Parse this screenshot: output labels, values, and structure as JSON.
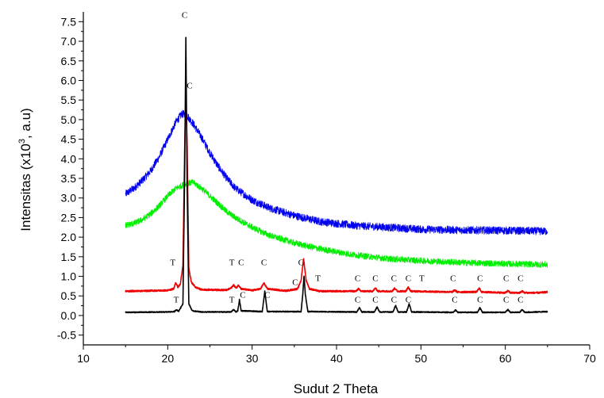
{
  "chart_data": {
    "type": "line",
    "title": "",
    "xlabel": "Sudut 2 Theta",
    "ylabel": "Intensitas (x10³, a.u)",
    "ylabel_parts": {
      "pre": "Intensitas (x10",
      "sup": "3",
      "post": ", a.u)"
    },
    "xlim": [
      10,
      70
    ],
    "ylim": [
      -0.75,
      7.75
    ],
    "xticks": [
      10,
      20,
      30,
      40,
      50,
      60,
      70
    ],
    "yticks": [
      -0.5,
      0.0,
      0.5,
      1.0,
      1.5,
      2.0,
      2.5,
      3.0,
      3.5,
      4.0,
      4.5,
      5.0,
      5.5,
      6.0,
      6.5,
      7.0,
      7.5
    ],
    "ytick_labels": [
      "-0.5",
      "0.0",
      "0.5",
      "1.0",
      "1.5",
      "2.0",
      "2.5",
      "3.0",
      "3.5",
      "4.0",
      "4.5",
      "5.0",
      "5.5",
      "6.0",
      "6.5",
      "7.0",
      "7.5"
    ],
    "grid": false,
    "legend": "none",
    "series": [
      {
        "color": "#0000ee",
        "noise": 0.1,
        "points": [
          [
            15,
            3.1
          ],
          [
            16,
            3.25
          ],
          [
            17,
            3.45
          ],
          [
            18,
            3.7
          ],
          [
            19,
            4.05
          ],
          [
            20,
            4.5
          ],
          [
            21,
            4.95
          ],
          [
            21.7,
            5.15
          ],
          [
            22.3,
            5.1
          ],
          [
            23,
            4.9
          ],
          [
            24,
            4.55
          ],
          [
            25,
            4.15
          ],
          [
            26,
            3.8
          ],
          [
            27,
            3.5
          ],
          [
            28,
            3.25
          ],
          [
            30,
            2.95
          ],
          [
            32,
            2.75
          ],
          [
            35,
            2.55
          ],
          [
            38,
            2.4
          ],
          [
            42,
            2.3
          ],
          [
            46,
            2.25
          ],
          [
            50,
            2.2
          ],
          [
            55,
            2.18
          ],
          [
            60,
            2.17
          ],
          [
            65,
            2.15
          ]
        ]
      },
      {
        "color": "#00ee00",
        "noise": 0.08,
        "points": [
          [
            15,
            2.3
          ],
          [
            16,
            2.35
          ],
          [
            17,
            2.45
          ],
          [
            18,
            2.6
          ],
          [
            19,
            2.8
          ],
          [
            20,
            3.05
          ],
          [
            21,
            3.25
          ],
          [
            22,
            3.35
          ],
          [
            23,
            3.4
          ],
          [
            24,
            3.25
          ],
          [
            25,
            3.05
          ],
          [
            26,
            2.85
          ],
          [
            27,
            2.65
          ],
          [
            28,
            2.5
          ],
          [
            30,
            2.25
          ],
          [
            32,
            2.05
          ],
          [
            35,
            1.85
          ],
          [
            38,
            1.7
          ],
          [
            42,
            1.55
          ],
          [
            46,
            1.45
          ],
          [
            50,
            1.4
          ],
          [
            55,
            1.35
          ],
          [
            60,
            1.32
          ],
          [
            65,
            1.3
          ]
        ]
      },
      {
        "color": "#ee0000",
        "noise": 0.02,
        "points": [
          [
            15,
            0.62
          ],
          [
            20,
            0.64
          ],
          [
            20.7,
            0.68
          ],
          [
            20.95,
            0.85
          ],
          [
            21.2,
            0.72
          ],
          [
            21.5,
            0.8
          ],
          [
            21.8,
            1.3
          ],
          [
            22.0,
            4.2
          ],
          [
            22.15,
            5.7
          ],
          [
            22.3,
            4.3
          ],
          [
            22.5,
            1.2
          ],
          [
            22.8,
            0.85
          ],
          [
            23.3,
            0.72
          ],
          [
            24,
            0.66
          ],
          [
            27,
            0.65
          ],
          [
            27.5,
            0.7
          ],
          [
            27.8,
            0.78
          ],
          [
            28.1,
            0.7
          ],
          [
            28.4,
            0.78
          ],
          [
            28.7,
            0.68
          ],
          [
            30,
            0.64
          ],
          [
            31,
            0.68
          ],
          [
            31.4,
            0.83
          ],
          [
            31.8,
            0.68
          ],
          [
            34,
            0.63
          ],
          [
            35.4,
            0.68
          ],
          [
            35.8,
            0.9
          ],
          [
            36.1,
            1.45
          ],
          [
            36.4,
            0.9
          ],
          [
            36.8,
            0.68
          ],
          [
            38,
            0.62
          ],
          [
            42.3,
            0.62
          ],
          [
            42.6,
            0.68
          ],
          [
            42.9,
            0.62
          ],
          [
            44.3,
            0.62
          ],
          [
            44.6,
            0.7
          ],
          [
            44.9,
            0.62
          ],
          [
            46.6,
            0.62
          ],
          [
            46.9,
            0.7
          ],
          [
            47.2,
            0.62
          ],
          [
            48.2,
            0.62
          ],
          [
            48.5,
            0.72
          ],
          [
            48.8,
            0.62
          ],
          [
            53.7,
            0.6
          ],
          [
            54.0,
            0.65
          ],
          [
            54.3,
            0.6
          ],
          [
            56.6,
            0.6
          ],
          [
            56.9,
            0.7
          ],
          [
            57.2,
            0.6
          ],
          [
            60,
            0.58
          ],
          [
            60.3,
            0.63
          ],
          [
            60.6,
            0.58
          ],
          [
            61.7,
            0.58
          ],
          [
            62.0,
            0.62
          ],
          [
            62.3,
            0.58
          ],
          [
            64,
            0.58
          ],
          [
            65,
            0.6
          ]
        ]
      },
      {
        "color": "#000000",
        "noise": 0.012,
        "points": [
          [
            15,
            0.08
          ],
          [
            20,
            0.09
          ],
          [
            20.8,
            0.1
          ],
          [
            21.0,
            0.15
          ],
          [
            21.3,
            0.11
          ],
          [
            21.8,
            0.3
          ],
          [
            22.0,
            3.5
          ],
          [
            22.15,
            7.1
          ],
          [
            22.3,
            3.3
          ],
          [
            22.5,
            0.3
          ],
          [
            22.9,
            0.12
          ],
          [
            24,
            0.09
          ],
          [
            27.5,
            0.09
          ],
          [
            27.8,
            0.15
          ],
          [
            28.1,
            0.09
          ],
          [
            28.3,
            0.12
          ],
          [
            28.5,
            0.4
          ],
          [
            28.7,
            0.12
          ],
          [
            31.2,
            0.1
          ],
          [
            31.5,
            0.62
          ],
          [
            31.8,
            0.1
          ],
          [
            35.8,
            0.1
          ],
          [
            36.0,
            0.55
          ],
          [
            36.15,
            1.0
          ],
          [
            36.3,
            0.55
          ],
          [
            36.6,
            0.1
          ],
          [
            42.4,
            0.09
          ],
          [
            42.7,
            0.2
          ],
          [
            43.0,
            0.09
          ],
          [
            44.5,
            0.09
          ],
          [
            44.8,
            0.22
          ],
          [
            45.1,
            0.09
          ],
          [
            46.7,
            0.09
          ],
          [
            47.0,
            0.26
          ],
          [
            47.3,
            0.09
          ],
          [
            48.3,
            0.09
          ],
          [
            48.6,
            0.3
          ],
          [
            48.9,
            0.09
          ],
          [
            53.8,
            0.08
          ],
          [
            54.1,
            0.14
          ],
          [
            54.4,
            0.08
          ],
          [
            56.7,
            0.08
          ],
          [
            57.0,
            0.2
          ],
          [
            57.3,
            0.08
          ],
          [
            60.0,
            0.08
          ],
          [
            60.3,
            0.15
          ],
          [
            60.6,
            0.08
          ],
          [
            61.7,
            0.08
          ],
          [
            62.0,
            0.15
          ],
          [
            62.3,
            0.08
          ],
          [
            65,
            0.1
          ]
        ]
      }
    ],
    "annotations": [
      {
        "text": "C",
        "x": 22.0,
        "y": 7.6
      },
      {
        "text": "C",
        "x": 22.6,
        "y": 5.8
      },
      {
        "text": "T",
        "x": 20.6,
        "y": 1.28
      },
      {
        "text": "T",
        "x": 27.6,
        "y": 1.28
      },
      {
        "text": "C",
        "x": 28.7,
        "y": 1.28
      },
      {
        "text": "C",
        "x": 31.4,
        "y": 1.28
      },
      {
        "text": "C",
        "x": 35.8,
        "y": 1.28
      },
      {
        "text": "C",
        "x": 35.1,
        "y": 0.78
      },
      {
        "text": "T",
        "x": 37.8,
        "y": 0.88
      },
      {
        "text": "C",
        "x": 42.5,
        "y": 0.88
      },
      {
        "text": "C",
        "x": 44.6,
        "y": 0.88
      },
      {
        "text": "C",
        "x": 46.8,
        "y": 0.88
      },
      {
        "text": "C",
        "x": 48.5,
        "y": 0.88
      },
      {
        "text": "T",
        "x": 50.1,
        "y": 0.88
      },
      {
        "text": "C",
        "x": 53.8,
        "y": 0.88
      },
      {
        "text": "C",
        "x": 57.0,
        "y": 0.88
      },
      {
        "text": "C",
        "x": 60.1,
        "y": 0.88
      },
      {
        "text": "C",
        "x": 61.8,
        "y": 0.88
      },
      {
        "text": "T",
        "x": 21.0,
        "y": 0.33
      },
      {
        "text": "T",
        "x": 27.6,
        "y": 0.33
      },
      {
        "text": "C",
        "x": 28.9,
        "y": 0.45
      },
      {
        "text": "C",
        "x": 31.8,
        "y": 0.45
      },
      {
        "text": "C",
        "x": 42.5,
        "y": 0.33
      },
      {
        "text": "C",
        "x": 44.6,
        "y": 0.33
      },
      {
        "text": "C",
        "x": 46.8,
        "y": 0.33
      },
      {
        "text": "C",
        "x": 48.5,
        "y": 0.33
      },
      {
        "text": "C",
        "x": 54.0,
        "y": 0.33
      },
      {
        "text": "C",
        "x": 57.0,
        "y": 0.33
      },
      {
        "text": "C",
        "x": 60.1,
        "y": 0.33
      },
      {
        "text": "C",
        "x": 61.8,
        "y": 0.33
      }
    ]
  }
}
